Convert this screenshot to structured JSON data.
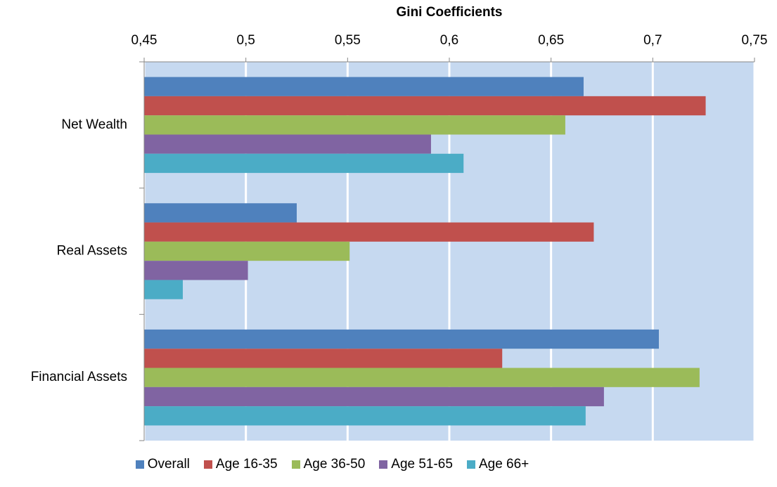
{
  "chart_data": {
    "type": "hbar",
    "title": "Gini Coefficients",
    "categories": [
      "Net Wealth",
      "Real Assets",
      "Financial Assets"
    ],
    "series": [
      {
        "name": "Overall",
        "color": "#4f81bd",
        "values": [
          0.666,
          0.525,
          0.703
        ]
      },
      {
        "name": "Age 16-35",
        "color": "#c0504d",
        "values": [
          0.726,
          0.671,
          0.626
        ]
      },
      {
        "name": "Age 36-50",
        "color": "#9bbb59",
        "values": [
          0.657,
          0.551,
          0.723
        ]
      },
      {
        "name": "Age 51-65",
        "color": "#8064a2",
        "values": [
          0.591,
          0.501,
          0.676
        ]
      },
      {
        "name": "Age 66+",
        "color": "#4bacc6",
        "values": [
          0.607,
          0.469,
          0.667
        ]
      }
    ],
    "xlim": [
      0.45,
      0.75
    ],
    "xticks": [
      {
        "value": 0.45,
        "label": "0,45"
      },
      {
        "value": 0.5,
        "label": "0,5"
      },
      {
        "value": 0.55,
        "label": "0,55"
      },
      {
        "value": 0.6,
        "label": "0,6"
      },
      {
        "value": 0.65,
        "label": "0,65"
      },
      {
        "value": 0.7,
        "label": "0,7"
      },
      {
        "value": 0.75,
        "label": "0,75"
      }
    ],
    "grid": true,
    "legend": "bottom",
    "background": "#c6d9f0"
  }
}
